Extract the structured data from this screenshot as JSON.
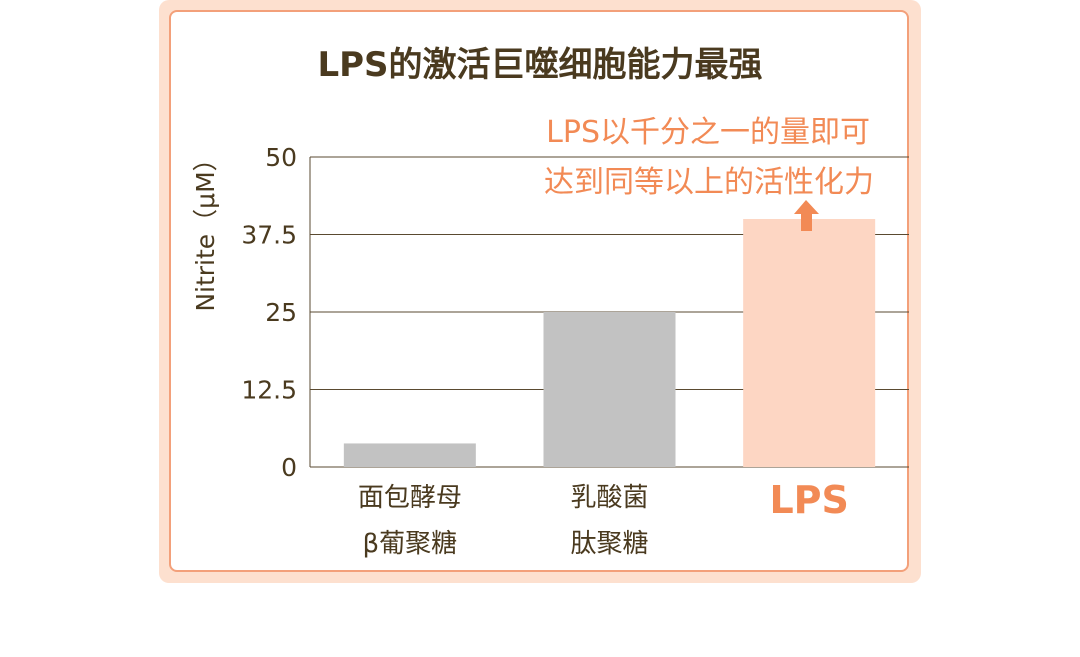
{
  "chart_data": {
    "type": "bar",
    "title": "LPS的激活巨噬细胞能力最强",
    "ylabel": "Nitrite（μM）",
    "ylim": [
      0,
      50
    ],
    "yticks": [
      "0",
      "12.5",
      "25",
      "37.5",
      "50"
    ],
    "ytick_values": [
      0,
      12.5,
      25,
      37.5,
      50
    ],
    "grid": true,
    "categories": [
      [
        "面包酵母",
        "β葡聚糖"
      ],
      [
        "乳酸菌",
        "肽聚糖"
      ],
      [
        "LPS"
      ]
    ],
    "values": [
      3.8,
      25,
      40
    ],
    "highlight_index": 2,
    "annotation": [
      "LPS以千分之一的量即可",
      "达到同等以上的活性化力"
    ]
  },
  "colors": {
    "bar": "#c2c2c2",
    "highlight_bar": "#fdd6c3",
    "accent": "#f28a55",
    "text": "#4a3a1f",
    "grid": "#5a4a30",
    "card_border": "#f3a07a",
    "card_bg": "#fde0cf"
  },
  "annotation_arrow_icon": "up-arrow-icon"
}
